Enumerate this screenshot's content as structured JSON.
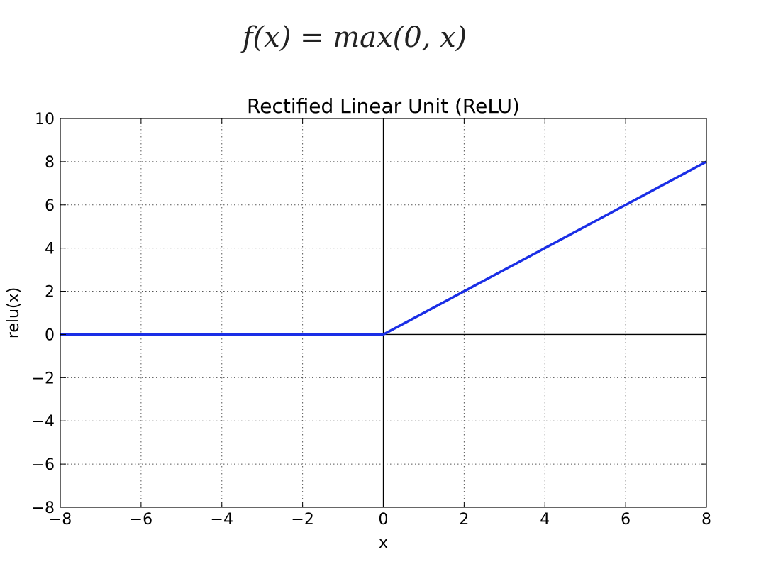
{
  "formula": "f(x) = max(0, x)",
  "chart_data": {
    "type": "line",
    "title": "Rectified Linear Unit (ReLU)",
    "xlabel": "x",
    "ylabel": "relu(x)",
    "xlim": [
      -8,
      8
    ],
    "ylim": [
      -8,
      10
    ],
    "xticks": [
      -8,
      -6,
      -4,
      -2,
      0,
      2,
      4,
      6,
      8
    ],
    "yticks": [
      -8,
      -6,
      -4,
      -2,
      0,
      2,
      4,
      6,
      8,
      10
    ],
    "xtick_labels": [
      "−8",
      "−6",
      "−4",
      "−2",
      "0",
      "2",
      "4",
      "6",
      "8"
    ],
    "ytick_labels": [
      "−8",
      "−6",
      "−4",
      "−2",
      "0",
      "2",
      "4",
      "6",
      "8",
      "10"
    ],
    "grid": true,
    "series": [
      {
        "x": [
          -8,
          0,
          8
        ],
        "y": [
          0,
          0,
          8
        ],
        "color": "#1a2ee6"
      }
    ],
    "reference_lines": {
      "x0": true,
      "y0": true,
      "color": "#000000"
    }
  }
}
